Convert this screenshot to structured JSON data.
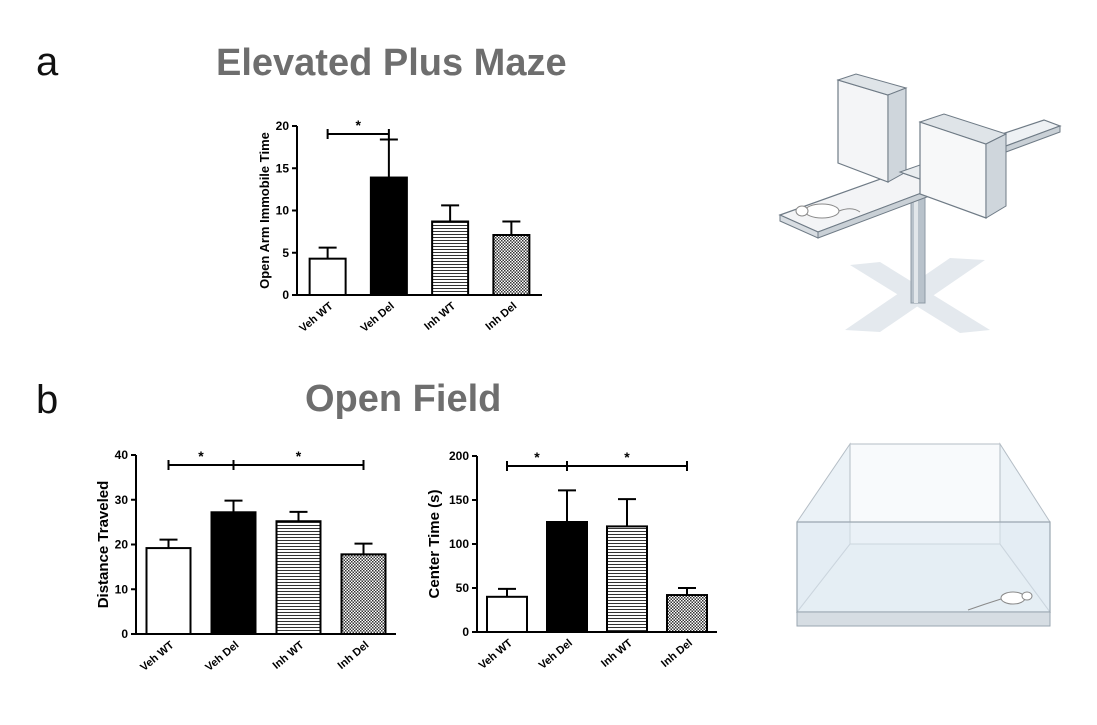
{
  "panels": {
    "a": {
      "letter": "a",
      "title": "Elevated Plus Maze"
    },
    "b": {
      "letter": "b",
      "title": "Open Field"
    }
  },
  "illustrations": {
    "elevated_plus_maze": {
      "icon": "elevated-plus-maze-apparatus-with-mouse"
    },
    "open_field": {
      "icon": "open-field-arena-with-mouse"
    }
  },
  "colors": {
    "title_gray": "#6e6e6e",
    "bar_black": "#000000",
    "bar_white": "#ffffff"
  },
  "chart_data": [
    {
      "id": "epm",
      "type": "bar",
      "ylabel": "Open Arm Immobile Time",
      "xlabel": "",
      "categories": [
        "Veh WT",
        "Veh Del",
        "Inh WT",
        "Inh Del"
      ],
      "values": [
        4.3,
        13.9,
        8.7,
        7.1
      ],
      "errors": [
        1.3,
        4.5,
        1.9,
        1.6
      ],
      "fills": [
        "white",
        "black",
        "hlines",
        "crosshatch"
      ],
      "ylim": [
        0,
        20
      ],
      "yticks": [
        0,
        5,
        10,
        15,
        20
      ],
      "significance": [
        {
          "from": 0,
          "to": 1,
          "label": "*"
        }
      ]
    },
    {
      "id": "of-distance",
      "type": "bar",
      "ylabel": "Distance Traveled",
      "xlabel": "",
      "categories": [
        "Veh WT",
        "Veh Del",
        "Inh WT",
        "Inh Del"
      ],
      "values": [
        19.2,
        27.2,
        25.2,
        17.8
      ],
      "errors": [
        1.9,
        2.6,
        2.1,
        2.4
      ],
      "fills": [
        "white",
        "black",
        "hlines",
        "crosshatch"
      ],
      "ylim": [
        0,
        40
      ],
      "yticks": [
        0,
        10,
        20,
        30,
        40
      ],
      "significance": [
        {
          "from": 0,
          "to": 1,
          "label": "*"
        },
        {
          "from": 1,
          "to": 3,
          "label": "*"
        }
      ]
    },
    {
      "id": "of-center",
      "type": "bar",
      "ylabel": "Center Time (s)",
      "xlabel": "",
      "categories": [
        "Veh WT",
        "Veh Del",
        "Inh WT",
        "Inh Del"
      ],
      "values": [
        40,
        125,
        120,
        42
      ],
      "errors": [
        9,
        36,
        31,
        8
      ],
      "fills": [
        "white",
        "black",
        "hlines",
        "crosshatch"
      ],
      "ylim": [
        0,
        200
      ],
      "yticks": [
        0,
        50,
        100,
        150,
        200
      ],
      "significance": [
        {
          "from": 0,
          "to": 1,
          "label": "*"
        },
        {
          "from": 1,
          "to": 3,
          "label": "*"
        }
      ]
    }
  ]
}
